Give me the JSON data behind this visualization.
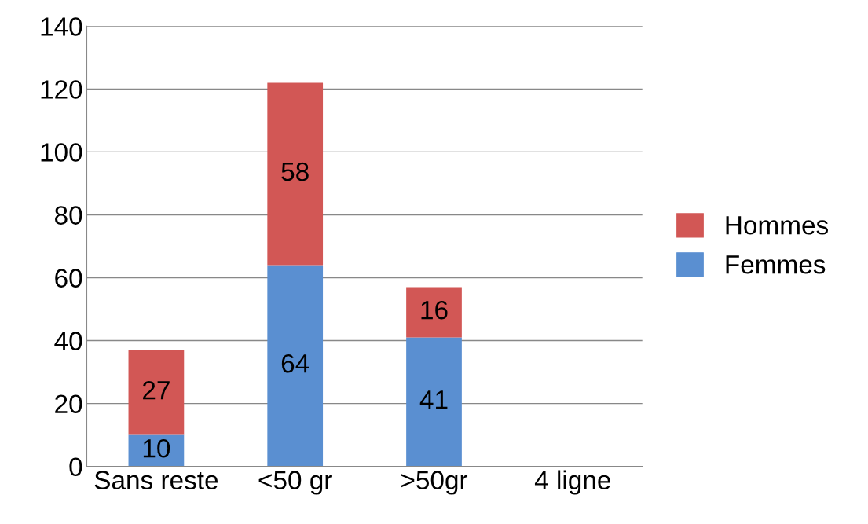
{
  "chart_data": {
    "type": "bar",
    "stacked": true,
    "categories": [
      "Sans reste",
      "<50 gr",
      ">50gr",
      "4 ligne"
    ],
    "series": [
      {
        "name": "Femmes",
        "color": "#5a8fd1",
        "values": [
          10,
          64,
          41,
          null
        ]
      },
      {
        "name": "Hommes",
        "color": "#d25755",
        "values": [
          27,
          58,
          16,
          null
        ]
      }
    ],
    "ylim": [
      0,
      140
    ],
    "yticks": [
      0,
      20,
      40,
      60,
      80,
      100,
      120,
      140
    ],
    "grid": "y",
    "legend": "right",
    "data_labels": true
  }
}
